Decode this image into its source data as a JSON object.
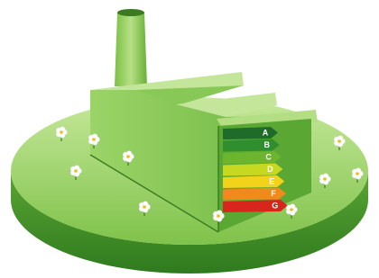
{
  "energy_label": {
    "classes": [
      "A",
      "B",
      "C",
      "D",
      "E",
      "F",
      "G"
    ]
  }
}
